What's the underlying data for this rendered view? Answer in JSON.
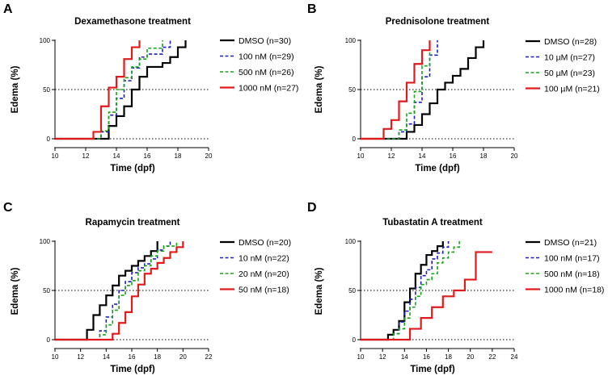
{
  "colors": {
    "black": "#000000",
    "blue": "#1f1fbf",
    "green": "#1aa31a",
    "red": "#e31a1c"
  },
  "chart_data": [
    {
      "panel_label": "A",
      "type": "line",
      "title": "Dexamethasone treatment",
      "xlabel": "Time (dpf)",
      "ylabel": "Edema (%)",
      "xlim": [
        10,
        20
      ],
      "ylim": [
        0,
        100
      ],
      "xticks": [
        10,
        12,
        14,
        16,
        18,
        20
      ],
      "yticks": [
        0,
        50,
        100
      ],
      "reference_lines": [
        0,
        50
      ],
      "series": [
        {
          "name": "DMSO (n=30)",
          "color": "#000000",
          "dash": "solid",
          "x": [
            10,
            13.0,
            13.5,
            14.0,
            14.5,
            15.0,
            15.5,
            16.0,
            17.0,
            17.5,
            18.0,
            18.5
          ],
          "y": [
            0,
            0,
            13,
            23,
            33,
            50,
            63,
            73,
            77,
            83,
            93,
            100
          ]
        },
        {
          "name": "100 nM (n=29)",
          "color": "#1f1fbf",
          "dash": "dashed",
          "x": [
            10,
            12.5,
            13.0,
            13.5,
            14.0,
            14.5,
            15.0,
            15.5,
            16.0,
            17.0,
            17.5
          ],
          "y": [
            0,
            0,
            7,
            24,
            41,
            59,
            72,
            83,
            86,
            93,
            100
          ]
        },
        {
          "name": "500 nM (n=26)",
          "color": "#1aa31a",
          "dash": "dashed",
          "x": [
            10,
            12.5,
            13.0,
            13.5,
            14.0,
            14.5,
            15.0,
            15.5,
            16.0,
            17.0
          ],
          "y": [
            0,
            0,
            8,
            27,
            50,
            62,
            73,
            81,
            92,
            100
          ]
        },
        {
          "name": "1000 nM (n=27)",
          "color": "#e31a1c",
          "dash": "solid",
          "x": [
            10,
            12.5,
            13.0,
            13.5,
            14.0,
            14.5,
            15.0,
            15.5
          ],
          "y": [
            0,
            7,
            33,
            52,
            63,
            81,
            93,
            100
          ]
        }
      ]
    },
    {
      "panel_label": "B",
      "type": "line",
      "title": "Prednisolone treatment",
      "xlabel": "Time (dpf)",
      "ylabel": "Edema (%)",
      "xlim": [
        10,
        20
      ],
      "ylim": [
        0,
        100
      ],
      "xticks": [
        10,
        12,
        14,
        16,
        18,
        20
      ],
      "yticks": [
        0,
        50,
        100
      ],
      "reference_lines": [
        0,
        50
      ],
      "series": [
        {
          "name": "DMSO (n=28)",
          "color": "#000000",
          "dash": "solid",
          "x": [
            10,
            12.5,
            13.0,
            13.5,
            14.0,
            14.5,
            15.0,
            15.5,
            16.0,
            16.5,
            17.0,
            17.5,
            18.0
          ],
          "y": [
            0,
            0,
            7,
            14,
            25,
            36,
            50,
            57,
            64,
            71,
            82,
            93,
            100
          ]
        },
        {
          "name": "10 µM (n=27)",
          "color": "#1f1fbf",
          "dash": "dashed",
          "x": [
            10,
            12.0,
            12.5,
            13.0,
            13.5,
            14.0,
            14.5,
            15.0
          ],
          "y": [
            0,
            0,
            7,
            15,
            37,
            63,
            85,
            100
          ]
        },
        {
          "name": "50 µM (n=23)",
          "color": "#1aa31a",
          "dash": "dashed",
          "x": [
            10,
            12.0,
            12.5,
            13.0,
            13.5,
            14.0,
            14.5
          ],
          "y": [
            0,
            0,
            9,
            26,
            48,
            74,
            100
          ]
        },
        {
          "name": "100 µM (n=21)",
          "color": "#e31a1c",
          "dash": "solid",
          "x": [
            10,
            11.5,
            12.0,
            12.5,
            13.0,
            13.5,
            14.0,
            14.5
          ],
          "y": [
            0,
            10,
            19,
            38,
            57,
            76,
            90,
            100
          ]
        }
      ]
    },
    {
      "panel_label": "C",
      "type": "line",
      "title": "Rapamycin treatment",
      "xlabel": "Time (dpf)",
      "ylabel": "Edema (%)",
      "xlim": [
        10,
        22
      ],
      "ylim": [
        0,
        100
      ],
      "xticks": [
        10,
        12,
        14,
        16,
        18,
        20,
        22
      ],
      "yticks": [
        0,
        50,
        100
      ],
      "reference_lines": [
        0,
        50
      ],
      "series": [
        {
          "name": "DMSO (n=20)",
          "color": "#000000",
          "dash": "solid",
          "x": [
            10,
            12.5,
            13.0,
            13.5,
            14.0,
            14.5,
            15.0,
            15.5,
            16.0,
            16.5,
            17.0,
            17.5,
            18.0
          ],
          "y": [
            0,
            10,
            25,
            35,
            45,
            55,
            65,
            70,
            75,
            80,
            85,
            90,
            100
          ]
        },
        {
          "name": "10 nM (n=22)",
          "color": "#1f1fbf",
          "dash": "dashed",
          "x": [
            10,
            13.0,
            13.5,
            14.0,
            14.5,
            15.0,
            15.5,
            16.0,
            16.5,
            17.0,
            17.5,
            18.0,
            18.5,
            19.0
          ],
          "y": [
            0,
            0,
            9,
            23,
            36,
            50,
            59,
            68,
            73,
            77,
            82,
            91,
            95,
            100
          ]
        },
        {
          "name": "20 nM (n=20)",
          "color": "#1aa31a",
          "dash": "dashed",
          "x": [
            10,
            13.0,
            13.5,
            14.0,
            14.5,
            15.0,
            15.5,
            16.0,
            16.5,
            17.0,
            17.5,
            18.0,
            18.5,
            19.5
          ],
          "y": [
            0,
            0,
            5,
            15,
            30,
            45,
            55,
            60,
            70,
            75,
            85,
            90,
            95,
            100
          ]
        },
        {
          "name": "50 nM (n=18)",
          "color": "#e31a1c",
          "dash": "solid",
          "x": [
            10,
            14.5,
            15.0,
            15.5,
            16.0,
            16.5,
            17.0,
            17.5,
            18.0,
            18.5,
            19.0,
            19.5,
            20.0
          ],
          "y": [
            0,
            6,
            17,
            28,
            44,
            56,
            67,
            72,
            78,
            83,
            89,
            94,
            100
          ]
        }
      ]
    },
    {
      "panel_label": "D",
      "type": "line",
      "title": "Tubastatin A treatment",
      "xlabel": "Time (dpf)",
      "ylabel": "Edema (%)",
      "xlim": [
        10,
        24
      ],
      "ylim": [
        0,
        100
      ],
      "xticks": [
        10,
        12,
        14,
        16,
        18,
        20,
        22,
        24
      ],
      "yticks": [
        0,
        50,
        100
      ],
      "reference_lines": [
        0,
        50
      ],
      "series": [
        {
          "name": "DMSO (n=21)",
          "color": "#000000",
          "dash": "solid",
          "x": [
            10,
            12.5,
            13.0,
            13.5,
            14.0,
            14.5,
            15.0,
            15.5,
            16.0,
            16.5,
            17.0,
            17.5
          ],
          "y": [
            0,
            5,
            10,
            19,
            38,
            52,
            67,
            76,
            86,
            90,
            95,
            100
          ]
        },
        {
          "name": "100 nM (n=17)",
          "color": "#1f1fbf",
          "dash": "dashed",
          "x": [
            10,
            13.0,
            13.5,
            14.0,
            14.5,
            15.0,
            15.5,
            16.0,
            16.5,
            17.0,
            17.5,
            18.0
          ],
          "y": [
            0,
            6,
            18,
            29,
            41,
            53,
            65,
            71,
            82,
            88,
            94,
            100
          ]
        },
        {
          "name": "500 nM (n=18)",
          "color": "#1aa31a",
          "dash": "dashed",
          "x": [
            10,
            13.0,
            13.5,
            14.0,
            14.5,
            15.0,
            15.5,
            16.0,
            16.5,
            17.0,
            17.5,
            18.0,
            18.5,
            19.0
          ],
          "y": [
            0,
            6,
            11,
            22,
            33,
            44,
            56,
            61,
            67,
            78,
            83,
            89,
            94,
            100
          ]
        },
        {
          "name": "1000 nM (n=18)",
          "color": "#e31a1c",
          "dash": "solid",
          "x": [
            10,
            14.5,
            15.5,
            16.5,
            17.5,
            18.5,
            19.5,
            20.5,
            22.0
          ],
          "y": [
            0,
            11,
            22,
            33,
            44,
            50,
            61,
            89,
            89
          ]
        }
      ]
    }
  ]
}
